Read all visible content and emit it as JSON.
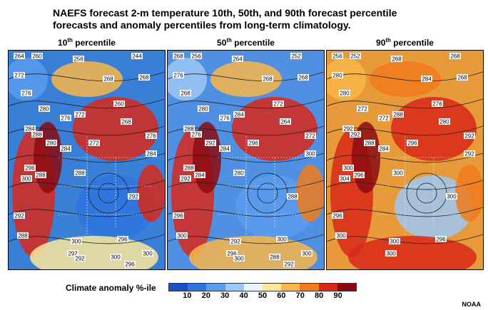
{
  "title_line1": "NAEFS forecast 2-m temperature 10th, 50th, and 90th forecast percentile",
  "title_line2": "forecasts and anomaly percentiles from long-term climatology.",
  "panels": [
    {
      "num": "10",
      "sup": "th",
      "word": " percentile",
      "labels": [
        "264",
        "260",
        "244",
        "268",
        "256",
        "272",
        "268",
        "276",
        "260",
        "268",
        "280",
        "276",
        "272",
        "276",
        "284",
        "288",
        "280",
        "284",
        "272",
        "296",
        "288",
        "300",
        "284",
        "288",
        "292",
        "292",
        "300",
        "296",
        "288",
        "292",
        "292",
        "300",
        "296",
        "300"
      ]
    },
    {
      "num": "50",
      "sup": "th",
      "word": " percentile",
      "labels": [
        "268",
        "256",
        "252",
        "268",
        "264",
        "276",
        "268",
        "268",
        "272",
        "264",
        "280",
        "276",
        "284",
        "272",
        "288",
        "276",
        "292",
        "284",
        "296",
        "288",
        "284",
        "292",
        "300",
        "280",
        "288",
        "296",
        "292",
        "300",
        "300",
        "296",
        "300",
        "288",
        "292",
        "300"
      ]
    },
    {
      "num": "90",
      "sup": "th",
      "word": " percentile",
      "labels": [
        "256",
        "252",
        "268",
        "268",
        "268",
        "280",
        "284",
        "280",
        "276",
        "280",
        "272",
        "272",
        "288",
        "292",
        "292",
        "292",
        "288",
        "284",
        "296",
        "300",
        "296",
        "304",
        "292",
        "300",
        "300",
        "296",
        "300",
        "296",
        "300",
        "300"
      ]
    }
  ],
  "legend": {
    "title": "Climate anomaly %-ile",
    "ticks": [
      "10",
      "20",
      "30",
      "40",
      "50",
      "60",
      "70",
      "80",
      "90"
    ],
    "colors": [
      "#1c4fc8",
      "#2f74e0",
      "#5a9cef",
      "#9cc8f5",
      "#e8f2fb",
      "#fbe79c",
      "#f9b64a",
      "#f07a1c",
      "#d8281a",
      "#8b0a12"
    ]
  },
  "credit": "NOAA"
}
